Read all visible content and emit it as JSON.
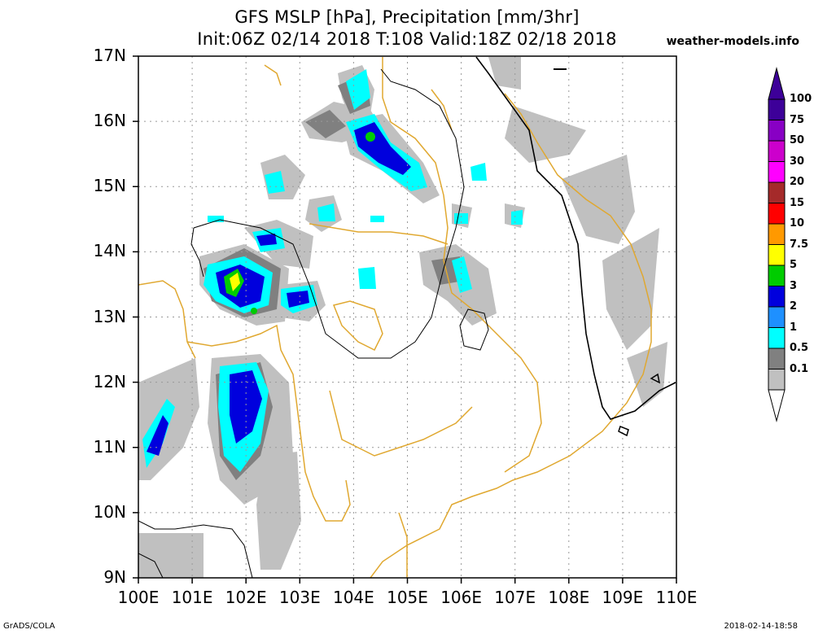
{
  "title_line1": "GFS MSLP [hPa], Precipitation [mm/3hr]",
  "title_line2": "Init:06Z 02/14 2018 T:108 Valid:18Z 02/18 2018",
  "website": "weather-models.info",
  "footer_left": "GrADS/COLA",
  "footer_right": "2018-02-14-18:58",
  "y_ticks": [
    "17N",
    "16N",
    "15N",
    "14N",
    "13N",
    "12N",
    "11N",
    "10N",
    "9N"
  ],
  "x_ticks": [
    "100E",
    "101E",
    "102E",
    "103E",
    "104E",
    "105E",
    "106E",
    "107E",
    "108E",
    "109E",
    "110E"
  ],
  "colorbar": {
    "labels": [
      "100",
      "75",
      "50",
      "30",
      "20",
      "15",
      "10",
      "7.5",
      "5",
      "3",
      "2",
      "1",
      "0.5",
      "0.1"
    ],
    "colors": [
      "#3d0099",
      "#8800c4",
      "#cc00cc",
      "#ff00ff",
      "#a52a2a",
      "#ff0000",
      "#ff9900",
      "#ffff00",
      "#00cc00",
      "#0000dd",
      "#1e90ff",
      "#00ffff",
      "#808080",
      "#c0c0c0"
    ],
    "top_arrow_color": "#3d0099",
    "bottom_arrow_color": "#ffffff"
  },
  "colors": {
    "coastline": "#e0a830",
    "isobar": "#000000",
    "grid": "#999999"
  }
}
